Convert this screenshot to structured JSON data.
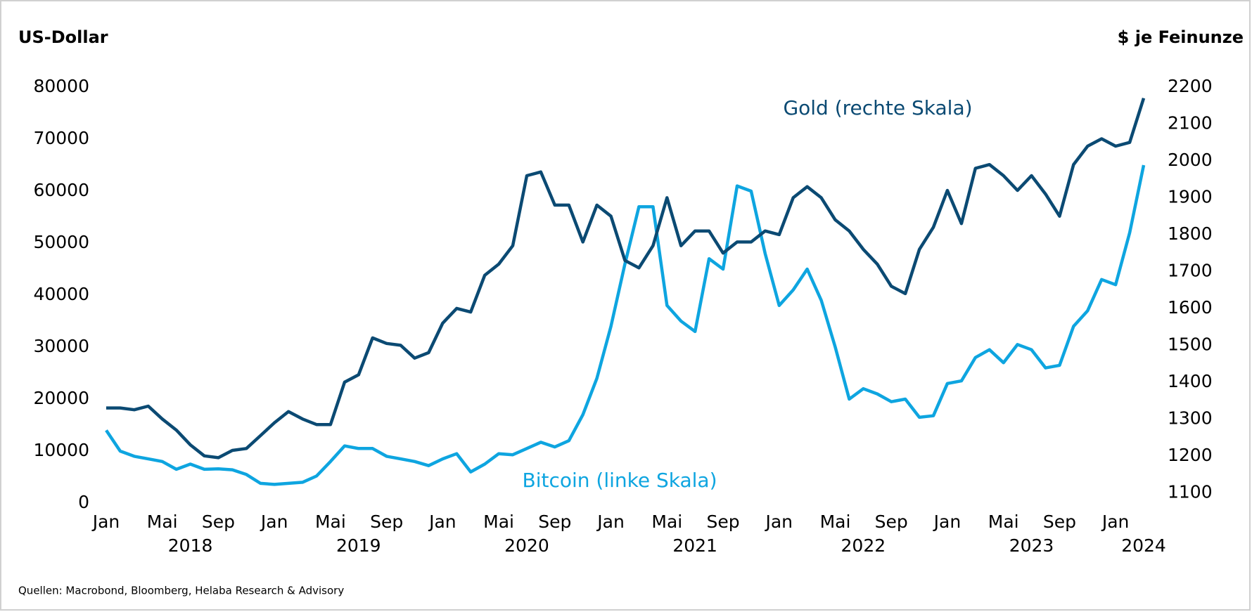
{
  "chart_data": {
    "type": "line",
    "left_axis_label": "US-Dollar",
    "right_axis_label": "$ je Feinunze",
    "source": "Quellen: Macrobond, Bloomberg, Helaba Research & Advisory",
    "annotations": [
      {
        "text": "Gold (rechte Skala)",
        "series": 1
      },
      {
        "text": "Bitcoin (linke Skala)",
        "series": 0
      }
    ],
    "x": [
      "2018-01",
      "2018-02",
      "2018-03",
      "2018-04",
      "2018-05",
      "2018-06",
      "2018-07",
      "2018-08",
      "2018-09",
      "2018-10",
      "2018-11",
      "2018-12",
      "2019-01",
      "2019-02",
      "2019-03",
      "2019-04",
      "2019-05",
      "2019-06",
      "2019-07",
      "2019-08",
      "2019-09",
      "2019-10",
      "2019-11",
      "2019-12",
      "2020-01",
      "2020-02",
      "2020-03",
      "2020-04",
      "2020-05",
      "2020-06",
      "2020-07",
      "2020-08",
      "2020-09",
      "2020-10",
      "2020-11",
      "2020-12",
      "2021-01",
      "2021-02",
      "2021-03",
      "2021-04",
      "2021-05",
      "2021-06",
      "2021-07",
      "2021-08",
      "2021-09",
      "2021-10",
      "2021-11",
      "2021-12",
      "2022-01",
      "2022-02",
      "2022-03",
      "2022-04",
      "2022-05",
      "2022-06",
      "2022-07",
      "2022-08",
      "2022-09",
      "2022-10",
      "2022-11",
      "2022-12",
      "2023-01",
      "2023-02",
      "2023-03",
      "2023-04",
      "2023-05",
      "2023-06",
      "2023-07",
      "2023-08",
      "2023-09",
      "2023-10",
      "2023-11",
      "2023-12",
      "2024-01",
      "2024-02",
      "2024-03"
    ],
    "series": [
      {
        "name": "Bitcoin",
        "color": "#0ea5e0",
        "axis": "y",
        "values": [
          14000,
          10000,
          9000,
          8500,
          8000,
          6500,
          7500,
          6500,
          6600,
          6400,
          5500,
          3800,
          3600,
          3800,
          4000,
          5200,
          8000,
          11000,
          10500,
          10500,
          9000,
          8500,
          8000,
          7200,
          8500,
          9500,
          6000,
          7500,
          9500,
          9300,
          10500,
          11700,
          10800,
          12000,
          17000,
          24000,
          34000,
          46000,
          57000,
          57000,
          38000,
          35000,
          33000,
          47000,
          45000,
          61000,
          60000,
          48000,
          38000,
          41000,
          45000,
          39000,
          30000,
          20000,
          22000,
          21000,
          19500,
          20000,
          16500,
          16800,
          23000,
          23500,
          28000,
          29500,
          27000,
          30500,
          29500,
          26000,
          26500,
          34000,
          37000,
          43000,
          42000,
          52000,
          65000
        ]
      },
      {
        "name": "Gold",
        "color": "#0b4a73",
        "axis": "y2",
        "values": [
          1330,
          1330,
          1325,
          1335,
          1300,
          1270,
          1230,
          1200,
          1195,
          1215,
          1220,
          1255,
          1290,
          1320,
          1300,
          1285,
          1285,
          1400,
          1420,
          1520,
          1505,
          1500,
          1465,
          1480,
          1560,
          1600,
          1590,
          1690,
          1720,
          1770,
          1960,
          1970,
          1880,
          1880,
          1780,
          1880,
          1850,
          1730,
          1710,
          1770,
          1900,
          1770,
          1810,
          1810,
          1750,
          1780,
          1780,
          1810,
          1800,
          1900,
          1930,
          1900,
          1840,
          1810,
          1760,
          1720,
          1660,
          1640,
          1760,
          1820,
          1920,
          1830,
          1980,
          1990,
          1960,
          1920,
          1960,
          1910,
          1850,
          1990,
          2040,
          2060,
          2040,
          2050,
          2170
        ]
      }
    ],
    "xlim": [
      "2018-01",
      "2024-03"
    ],
    "xticks": [
      {
        "value": "2018-01",
        "label": "Jan"
      },
      {
        "value": "2018-05",
        "label": "Mai"
      },
      {
        "value": "2018-09",
        "label": "Sep"
      },
      {
        "value": "2019-01",
        "label": "Jan"
      },
      {
        "value": "2019-05",
        "label": "Mai"
      },
      {
        "value": "2019-09",
        "label": "Sep"
      },
      {
        "value": "2020-01",
        "label": "Jan"
      },
      {
        "value": "2020-05",
        "label": "Mai"
      },
      {
        "value": "2020-09",
        "label": "Sep"
      },
      {
        "value": "2021-01",
        "label": "Jan"
      },
      {
        "value": "2021-05",
        "label": "Mai"
      },
      {
        "value": "2021-09",
        "label": "Sep"
      },
      {
        "value": "2022-01",
        "label": "Jan"
      },
      {
        "value": "2022-05",
        "label": "Mai"
      },
      {
        "value": "2022-09",
        "label": "Sep"
      },
      {
        "value": "2023-01",
        "label": "Jan"
      },
      {
        "value": "2023-05",
        "label": "Mai"
      },
      {
        "value": "2023-09",
        "label": "Sep"
      },
      {
        "value": "2024-01",
        "label": "Jan"
      }
    ],
    "year_labels": [
      {
        "value": "2018-07",
        "label": "2018"
      },
      {
        "value": "2019-07",
        "label": "2019"
      },
      {
        "value": "2020-07",
        "label": "2020"
      },
      {
        "value": "2021-07",
        "label": "2021"
      },
      {
        "value": "2022-07",
        "label": "2022"
      },
      {
        "value": "2023-07",
        "label": "2023"
      },
      {
        "value": "2024-03",
        "label": "2024"
      }
    ],
    "ylim": [
      0,
      80000
    ],
    "yticks": [
      0,
      10000,
      20000,
      30000,
      40000,
      50000,
      60000,
      70000,
      80000
    ],
    "y2lim": [
      1072,
      2200
    ],
    "y2ticks": [
      1100,
      1200,
      1300,
      1400,
      1500,
      1600,
      1700,
      1800,
      1900,
      2000,
      2100,
      2200
    ],
    "grid": false
  }
}
